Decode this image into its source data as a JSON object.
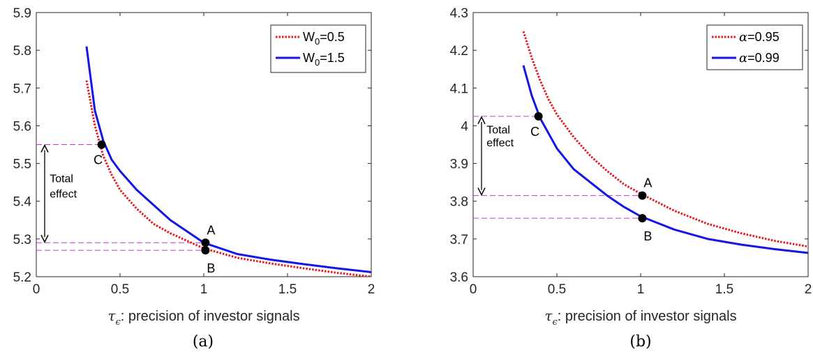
{
  "chart_data": [
    {
      "type": "line",
      "caption": "(a)",
      "xlabel_symbol": "τ",
      "xlabel_sub": "ϵ",
      "xlabel_text": ": precision of investor signals",
      "xlim": [
        0,
        2
      ],
      "ylim": [
        5.2,
        5.9
      ],
      "xticks": [
        0,
        0.5,
        1,
        1.5,
        2
      ],
      "xtick_labels": [
        "0",
        "0.5",
        "1",
        "1.5",
        "2"
      ],
      "yticks": [
        5.2,
        5.3,
        5.4,
        5.5,
        5.6,
        5.7,
        5.8,
        5.9
      ],
      "ytick_labels": [
        "5.2",
        "5.3",
        "5.4",
        "5.5",
        "5.6",
        "5.7",
        "5.8",
        "5.9"
      ],
      "legend_position": "top-right",
      "series": [
        {
          "label_main": "W",
          "label_sub": "0",
          "label_rest": "=0.5",
          "style": "dotted",
          "color": "#e8191e",
          "x": [
            0.3,
            0.35,
            0.4,
            0.45,
            0.5,
            0.6,
            0.7,
            0.8,
            0.9,
            1.0,
            1.2,
            1.4,
            1.6,
            1.8,
            2.0
          ],
          "y": [
            5.72,
            5.6,
            5.52,
            5.47,
            5.43,
            5.38,
            5.34,
            5.315,
            5.295,
            5.275,
            5.25,
            5.235,
            5.222,
            5.21,
            5.2
          ]
        },
        {
          "label_main": "W",
          "label_sub": "0",
          "label_rest": "=1.5",
          "style": "solid",
          "color": "#1515e6",
          "x": [
            0.3,
            0.35,
            0.4,
            0.45,
            0.5,
            0.6,
            0.7,
            0.8,
            0.9,
            1.0,
            1.2,
            1.4,
            1.6,
            1.8,
            2.0
          ],
          "y": [
            5.81,
            5.64,
            5.56,
            5.51,
            5.48,
            5.43,
            5.39,
            5.35,
            5.32,
            5.29,
            5.26,
            5.245,
            5.233,
            5.222,
            5.212
          ]
        }
      ],
      "points": [
        {
          "label": "C",
          "x": 0.39,
          "y": 5.55,
          "label_side": "below-left"
        },
        {
          "label": "A",
          "x": 1.01,
          "y": 5.29,
          "label_side": "above-right"
        },
        {
          "label": "B",
          "x": 1.01,
          "y": 5.27,
          "label_side": "below-right"
        }
      ],
      "hlines": [
        5.55,
        5.29,
        5.27
      ],
      "hline_color": "#d42ed4",
      "arrow": {
        "x": 0.05,
        "from": 5.55,
        "to": 5.29
      },
      "effect_lines": [
        "Total",
        "effect"
      ],
      "effect_at": {
        "x": 0.08,
        "y": [
          5.45,
          5.41
        ]
      }
    },
    {
      "type": "line",
      "caption": "(b)",
      "xlabel_symbol": "τ",
      "xlabel_sub": "ϵ",
      "xlabel_text": ": precision of investor signals",
      "xlim": [
        0,
        2
      ],
      "ylim": [
        3.6,
        4.3
      ],
      "xticks": [
        0,
        0.5,
        1,
        1.5,
        2
      ],
      "xtick_labels": [
        "0",
        "0.5",
        "1",
        "1.5",
        "2"
      ],
      "yticks": [
        3.6,
        3.7,
        3.8,
        3.9,
        4.0,
        4.1,
        4.2,
        4.3
      ],
      "ytick_labels": [
        "3.6",
        "3.7",
        "3.8",
        "3.9",
        "4",
        "4.1",
        "4.2",
        "4.3"
      ],
      "legend_position": "top-right",
      "series": [
        {
          "label_main": "α",
          "label_sub": "",
          "label_rest": "=0.95",
          "style": "dotted",
          "color": "#e8191e",
          "x": [
            0.3,
            0.35,
            0.4,
            0.45,
            0.5,
            0.6,
            0.7,
            0.8,
            0.9,
            1.0,
            1.2,
            1.4,
            1.6,
            1.8,
            2.0
          ],
          "y": [
            4.25,
            4.18,
            4.12,
            4.07,
            4.03,
            3.97,
            3.92,
            3.88,
            3.845,
            3.82,
            3.775,
            3.74,
            3.715,
            3.695,
            3.68
          ]
        },
        {
          "label_main": "α",
          "label_sub": "",
          "label_rest": "=0.99",
          "style": "solid",
          "color": "#1515e6",
          "x": [
            0.3,
            0.35,
            0.4,
            0.45,
            0.5,
            0.6,
            0.7,
            0.8,
            0.9,
            1.0,
            1.2,
            1.4,
            1.6,
            1.8,
            2.0
          ],
          "y": [
            4.16,
            4.08,
            4.02,
            3.98,
            3.94,
            3.885,
            3.85,
            3.815,
            3.785,
            3.76,
            3.725,
            3.7,
            3.685,
            3.673,
            3.663
          ]
        }
      ],
      "points": [
        {
          "label": "C",
          "x": 0.39,
          "y": 4.025,
          "label_side": "below-left"
        },
        {
          "label": "A",
          "x": 1.01,
          "y": 3.815,
          "label_side": "above-right"
        },
        {
          "label": "B",
          "x": 1.01,
          "y": 3.755,
          "label_side": "below-right"
        }
      ],
      "hlines": [
        4.025,
        3.815,
        3.755
      ],
      "hline_color": "#d42ed4",
      "arrow": {
        "x": 0.05,
        "from": 4.025,
        "to": 3.815
      },
      "effect_lines": [
        "Total",
        "effect"
      ],
      "effect_at": {
        "x": 0.08,
        "y": [
          3.98,
          3.945
        ]
      }
    }
  ]
}
